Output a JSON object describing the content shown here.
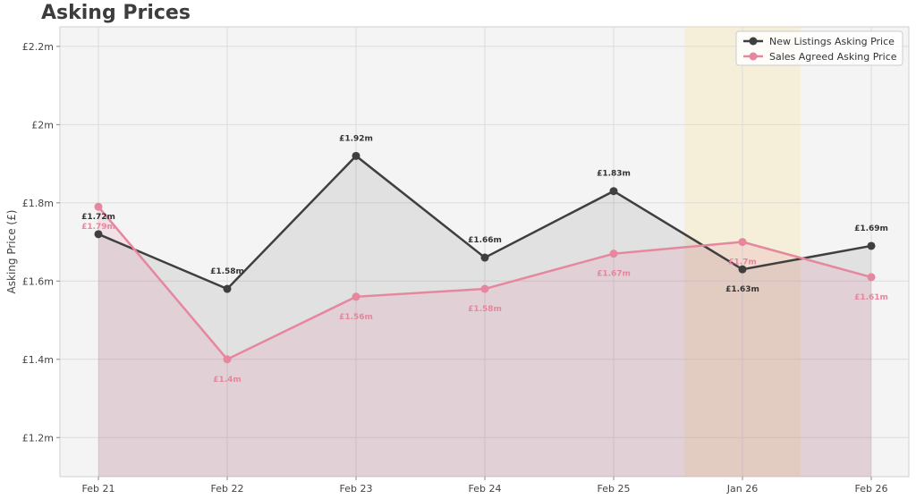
{
  "chart_data": {
    "type": "line",
    "title": "Asking Prices",
    "xlabel": "",
    "ylabel": "Asking Price (£)",
    "categories": [
      "Feb 21",
      "Feb 22",
      "Feb 23",
      "Feb 24",
      "Feb 25",
      "Jan 26",
      "Feb 26"
    ],
    "ylim": [
      1.1,
      2.25
    ],
    "yticks": [
      1.2,
      1.4,
      1.6,
      1.8,
      2.0,
      2.2
    ],
    "ytick_labels": [
      "£1.2m",
      "£1.4m",
      "£1.6m",
      "£1.8m",
      "£2m",
      "£2.2m"
    ],
    "grid": true,
    "legend_position": "top-right",
    "highlight_band": {
      "from_index": 4.55,
      "to_index": 5.45,
      "color": "#f7e6b5"
    },
    "series": [
      {
        "name": "New Listings Asking Price",
        "color": "#3f3f40",
        "values": [
          1.72,
          1.58,
          1.92,
          1.66,
          1.83,
          1.63,
          1.69
        ],
        "labels": [
          "£1.72m",
          "£1.58m",
          "£1.92m",
          "£1.66m",
          "£1.83m",
          "£1.63m",
          "£1.69m"
        ]
      },
      {
        "name": "Sales Agreed Asking Price",
        "color": "#e5879e",
        "values": [
          1.79,
          1.4,
          1.56,
          1.58,
          1.67,
          1.7,
          1.61
        ],
        "labels": [
          "£1.79m",
          "£1.4m",
          "£1.56m",
          "£1.58m",
          "£1.67m",
          "£1.7m",
          "£1.61m"
        ]
      }
    ]
  }
}
